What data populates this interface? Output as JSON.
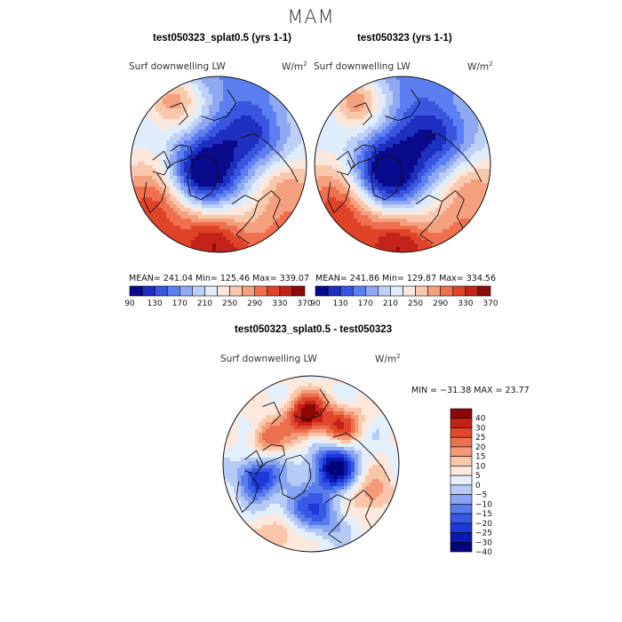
{
  "page_title": "MAM",
  "colors": {
    "abs_scale": [
      "#0a0a8c",
      "#1f2fc0",
      "#3a55e0",
      "#5b7ef0",
      "#8fa8f2",
      "#bcd0f7",
      "#deecfb",
      "#fbe7dc",
      "#f8c8ad",
      "#f4a07f",
      "#ef6f4f",
      "#e04428",
      "#c2241b",
      "#8c0c0c"
    ],
    "diff_scale": [
      "#05057a",
      "#0a18b4",
      "#1c3ad6",
      "#3759e6",
      "#5a7ded",
      "#89a5f2",
      "#b5cbf6",
      "#e4effc",
      "#fde8dd",
      "#f9c6aa",
      "#f39b78",
      "#ec6f4e",
      "#e0472c",
      "#c52217",
      "#8c0707"
    ]
  },
  "panels": {
    "top_left": {
      "title": "test050323_splat0.5 (yrs 1-1)",
      "variable": "Surf downwelling LW",
      "units_base": "W/m",
      "units_exp": "2",
      "stats": "MEAN= 241.04   Min= 125.46   Max= 339.07"
    },
    "top_right": {
      "title": "test050323 (yrs 1-1)",
      "variable": "Surf downwelling LW",
      "units_base": "W/m",
      "units_exp": "2",
      "stats": "MEAN= 241.86   Min= 129.87   Max= 334.56"
    },
    "bottom": {
      "title": "test050323_splat0.5 - test050323",
      "variable": "Surf downwelling LW",
      "units_base": "W/m",
      "units_exp": "2",
      "minmax": "MIN = −31.38 MAX =  23.77"
    }
  },
  "chart_data": [
    {
      "type": "heatmap",
      "projection": "north polar stereographic",
      "title": "test050323_splat0.5 (yrs 1-1)",
      "variable": "Surf downwelling LW",
      "units": "W/m2",
      "mean": 241.04,
      "min": 125.46,
      "max": 339.07,
      "colorbar_levels": [
        90,
        110,
        130,
        150,
        170,
        190,
        210,
        230,
        250,
        270,
        290,
        310,
        330,
        350,
        370
      ],
      "colorbar_tick_labels": [
        "90",
        "130",
        "170",
        "210",
        "250",
        "290",
        "330",
        "370"
      ]
    },
    {
      "type": "heatmap",
      "projection": "north polar stereographic",
      "title": "test050323 (yrs 1-1)",
      "variable": "Surf downwelling LW",
      "units": "W/m2",
      "mean": 241.86,
      "min": 129.87,
      "max": 334.56,
      "colorbar_levels": [
        90,
        110,
        130,
        150,
        170,
        190,
        210,
        230,
        250,
        270,
        290,
        310,
        330,
        350,
        370
      ],
      "colorbar_tick_labels": [
        "90",
        "130",
        "170",
        "210",
        "250",
        "290",
        "330",
        "370"
      ]
    },
    {
      "type": "heatmap",
      "projection": "north polar stereographic",
      "title": "test050323_splat0.5 - test050323",
      "variable": "Surf downwelling LW",
      "units": "W/m2",
      "min": -31.38,
      "max": 23.77,
      "colorbar_levels": [
        -45,
        -40,
        -30,
        -25,
        -20,
        -15,
        -10,
        -5,
        0,
        5,
        10,
        15,
        20,
        25,
        30,
        40,
        45
      ],
      "colorbar_tick_labels": [
        "40",
        "30",
        "25",
        "20",
        "15",
        "10",
        "5",
        "0",
        "−5",
        "−10",
        "−15",
        "−20",
        "−25",
        "−30",
        "−40"
      ]
    }
  ]
}
